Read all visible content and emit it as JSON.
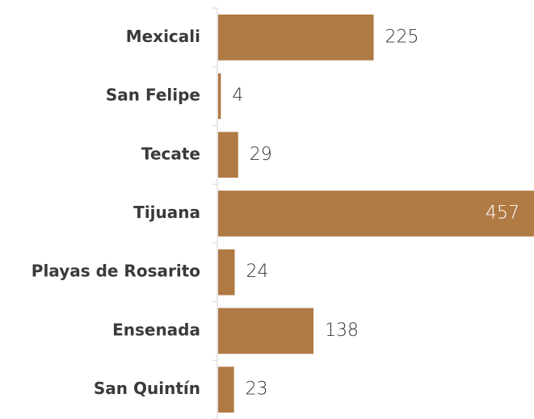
{
  "chart_data": {
    "type": "barh",
    "categories": [
      "Mexicali",
      "San Felipe",
      "Tecate",
      "Tijuana",
      "Playas de Rosarito",
      "Ensenada",
      "San Quintín"
    ],
    "values": [
      225,
      4,
      29,
      457,
      24,
      138,
      23
    ],
    "color": "#b07a45"
  }
}
